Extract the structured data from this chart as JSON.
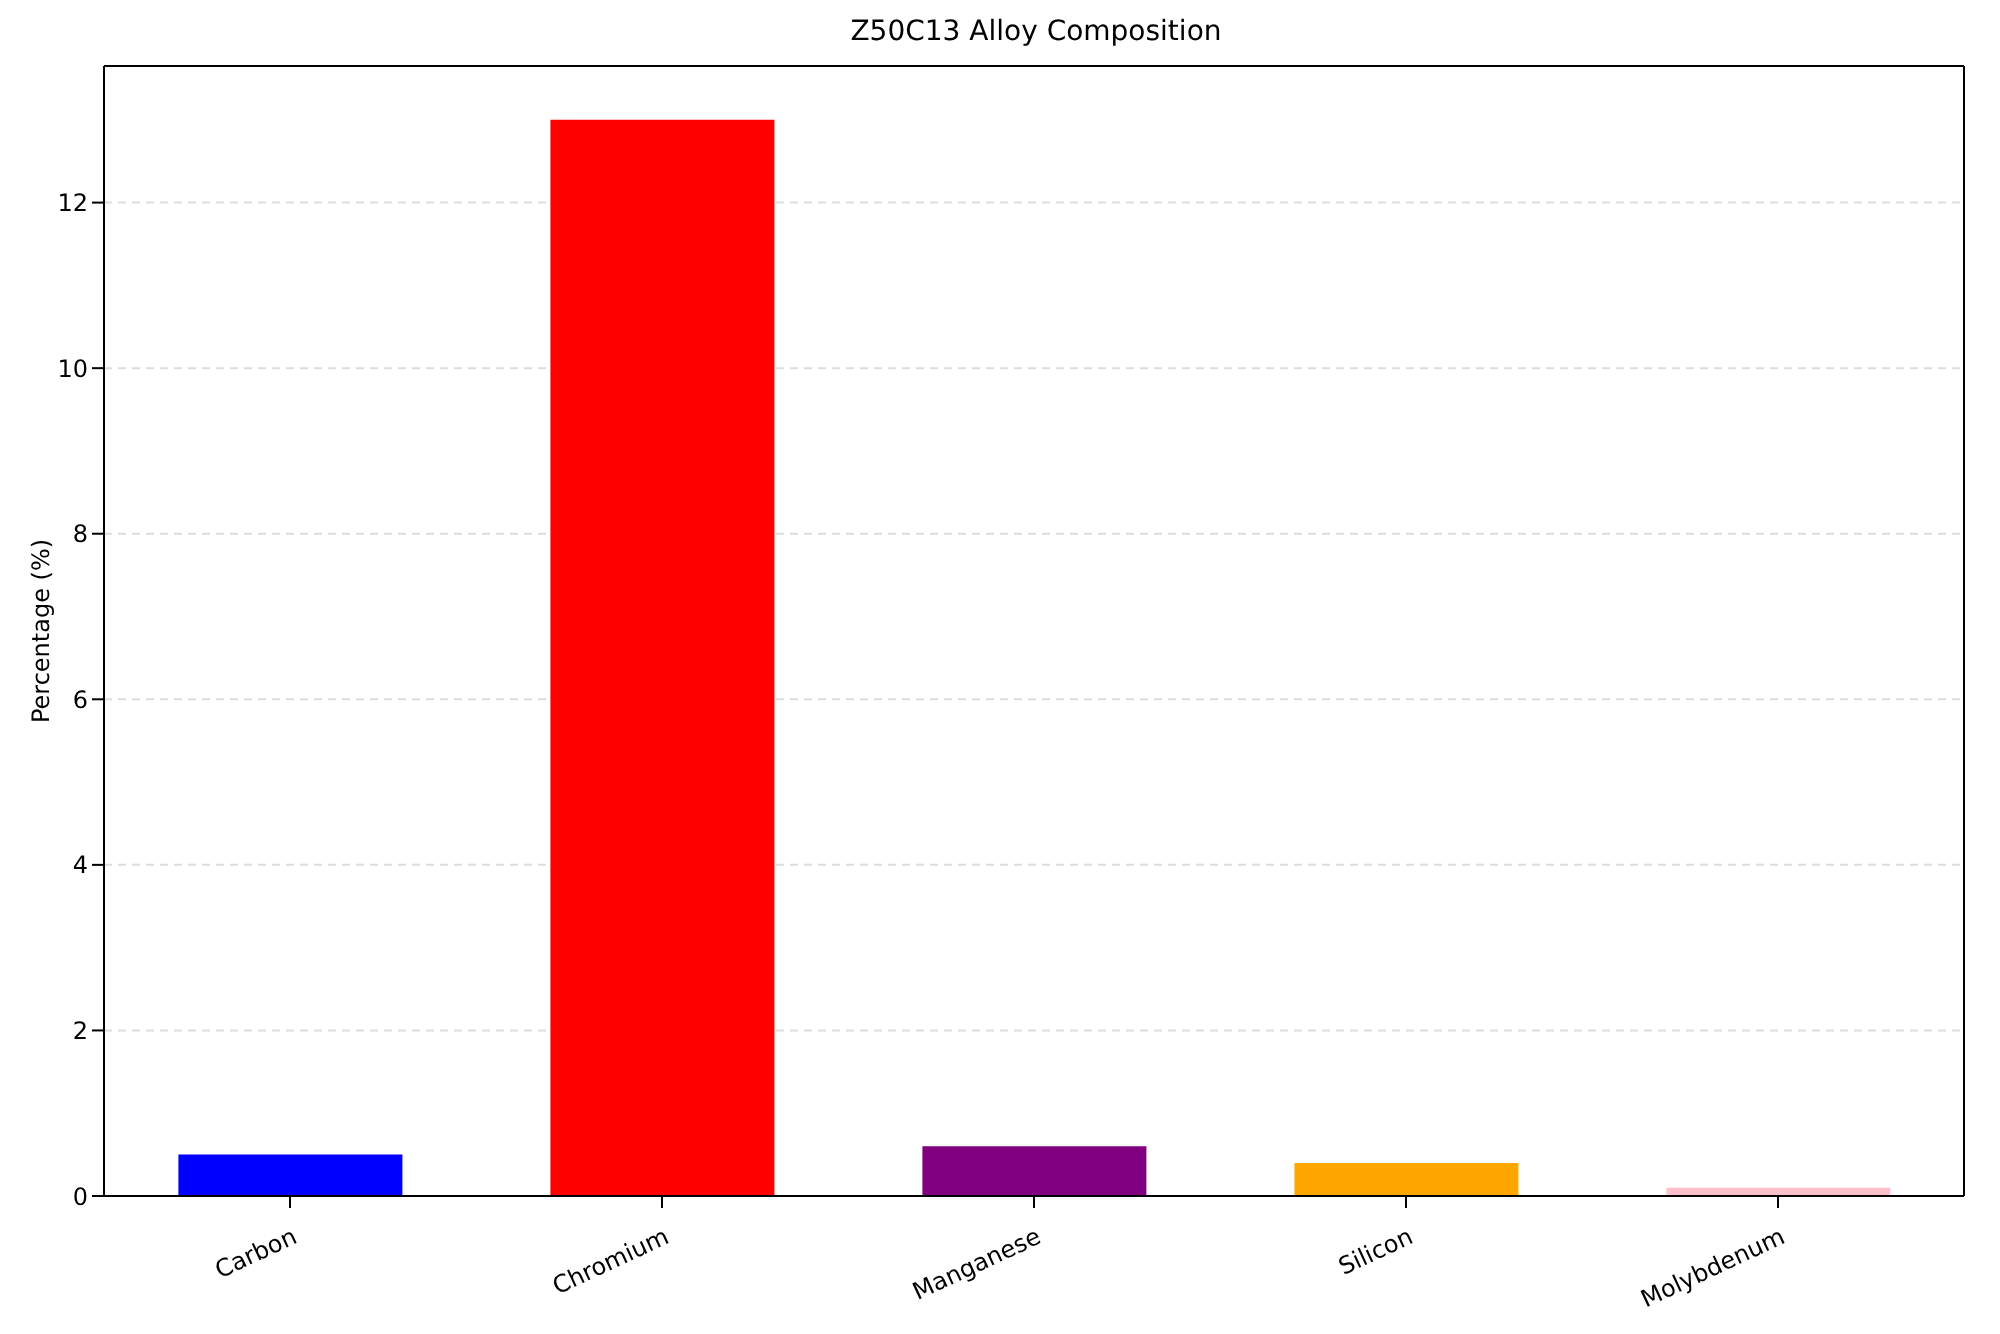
{
  "chart_data": {
    "type": "bar",
    "title": "Z50C13 Alloy Composition",
    "ylabel": "Percentage (%)",
    "categories": [
      "Carbon",
      "Chromium",
      "Manganese",
      "Silicon",
      "Molybdenum"
    ],
    "values": [
      0.5,
      13,
      0.6,
      0.4,
      0.1
    ],
    "colors": [
      "#0000ff",
      "#ff0000",
      "#800080",
      "#ffa500",
      "#ffc0cb"
    ],
    "ylim": [
      0,
      13.65
    ],
    "yticks": [
      0,
      2,
      4,
      6,
      8,
      10,
      12
    ],
    "grid": "y"
  }
}
